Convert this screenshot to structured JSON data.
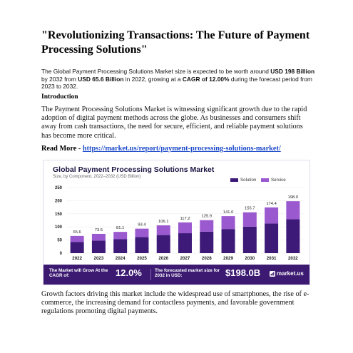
{
  "article": {
    "title": "\"Revolutionizing Transactions: The Future of Payment Processing Solutions\"",
    "summary": {
      "t1": "The Global Payment Processing Solutions Market size is expected to be worth around ",
      "b1": "USD 198 Billion",
      "t2": " by 2032 from ",
      "b2": "USD 65.6 Billion",
      "t3": " in 2022, growing at a ",
      "b3": "CAGR of 12.00%",
      "t4": " during the forecast period from 2023 to 2032."
    },
    "intro_heading": "Introduction",
    "intro_text": "The Payment Processing Solutions Market is witnessing significant growth due to the rapid adoption of digital payment methods across the globe. As businesses and consumers shift away from cash transactions, the need for secure, efficient, and reliable payment solutions has become more critical.",
    "read_more_label": "Read More - ",
    "read_more_url": "https://market.us/report/payment-processing-solutions-market/",
    "growth_text": " Growth factors driving this market include the widespread use of smartphones, the rise of e-commerce, the increasing demand for contactless payments, and favorable government regulations promoting digital payments."
  },
  "chart_data": {
    "type": "bar",
    "stacked": true,
    "title": "Global Payment Processing Solutions Market",
    "subtitle": "Size, by Component, 2022–2032 (USD Billion)",
    "categories": [
      "2022",
      "2023",
      "2024",
      "2025",
      "2026",
      "2027",
      "2028",
      "2029",
      "2030",
      "2031",
      "2032"
    ],
    "totals": [
      "65.6",
      "73.5",
      "81.1",
      "93.4",
      "106.1",
      "117.2",
      "125.9",
      "141.0",
      "155.7",
      "174.4",
      "198.0"
    ],
    "series": [
      {
        "name": "Solution",
        "color": "#3d1a78",
        "values": [
          43,
          48,
          53,
          61,
          69,
          76,
          82,
          92,
          101,
          113,
          129
        ]
      },
      {
        "name": "Service",
        "color": "#9b59d0",
        "values": [
          22.6,
          25.5,
          28.1,
          32.4,
          37.1,
          41.2,
          43.9,
          49.0,
          54.7,
          61.4,
          69.0
        ]
      }
    ],
    "y_ticks": [
      "0",
      "50",
      "100",
      "150",
      "200",
      "250"
    ],
    "ylim": [
      0,
      250
    ],
    "legend_position": "top-right"
  },
  "banner": {
    "cagr_label": "The Market will Grow At the CAGR of:",
    "cagr_value": "12.0%",
    "forecast_label": "The forecasted market size for 2032 in USD:",
    "forecast_value": "$198.0B",
    "brand": "market.us",
    "colors": {
      "background": "#3c1a72",
      "value": "#ffffff"
    }
  }
}
